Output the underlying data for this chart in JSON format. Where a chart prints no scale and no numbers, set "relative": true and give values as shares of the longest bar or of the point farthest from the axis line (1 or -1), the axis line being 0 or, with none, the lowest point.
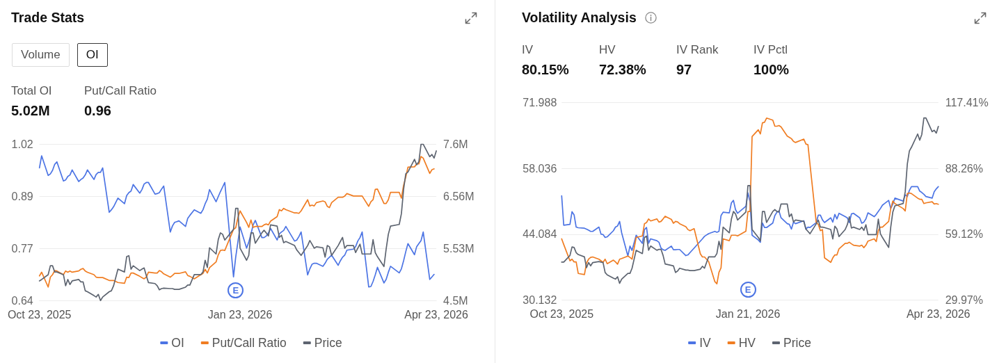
{
  "chart_data": [
    {
      "type": "other",
      "title": "Trade Stats",
      "categories": [
        "Volume",
        "OI"
      ],
      "annotations": [
        "Total OI",
        "5.02M",
        "Put/Call Ratio",
        "0.96"
      ]
    },
    {
      "type": "line",
      "x": [
        "2025-10-23",
        "2025-10-24",
        "2025-10-27",
        "2025-10-28",
        "2025-10-29",
        "2025-10-30",
        "2025-10-31",
        "2025-11-03",
        "2025-11-04",
        "2025-11-05",
        "2025-11-06",
        "2025-11-07",
        "2025-11-10",
        "2025-11-11",
        "2025-11-12",
        "2025-11-13",
        "2025-11-14",
        "2025-11-17",
        "2025-11-18",
        "2025-11-19",
        "2025-11-20",
        "2025-11-21",
        "2025-11-24",
        "2025-11-25",
        "2025-11-26",
        "2025-11-28",
        "2025-12-01",
        "2025-12-02",
        "2025-12-03",
        "2025-12-04",
        "2025-12-05",
        "2025-12-08",
        "2025-12-09",
        "2025-12-10",
        "2025-12-11",
        "2025-12-12",
        "2025-12-15",
        "2025-12-16",
        "2025-12-17",
        "2025-12-18",
        "2025-12-19",
        "2025-12-22",
        "2025-12-23",
        "2025-12-24",
        "2025-12-26",
        "2025-12-29",
        "2025-12-30",
        "2025-12-31",
        "2026-01-02",
        "2026-01-05",
        "2026-01-06",
        "2026-01-07",
        "2026-01-08",
        "2026-01-09",
        "2026-01-12",
        "2026-01-13",
        "2026-01-14",
        "2026-01-15",
        "2026-01-16",
        "2026-01-20",
        "2026-01-21",
        "2026-01-22",
        "2026-01-23",
        "2026-01-26",
        "2026-01-27",
        "2026-01-28",
        "2026-01-29",
        "2026-01-30",
        "2026-02-02",
        "2026-02-03",
        "2026-02-04",
        "2026-02-05",
        "2026-02-06",
        "2026-02-09",
        "2026-02-10",
        "2026-02-11",
        "2026-02-12",
        "2026-02-13",
        "2026-02-17",
        "2026-02-18",
        "2026-02-19",
        "2026-02-20",
        "2026-02-23",
        "2026-02-24",
        "2026-02-25",
        "2026-02-26",
        "2026-02-27",
        "2026-03-02",
        "2026-03-03",
        "2026-03-04",
        "2026-03-05",
        "2026-03-06",
        "2026-03-09",
        "2026-03-10",
        "2026-03-11",
        "2026-03-12",
        "2026-03-13",
        "2026-03-16",
        "2026-03-17",
        "2026-03-18",
        "2026-03-19",
        "2026-03-20",
        "2026-03-23",
        "2026-03-24",
        "2026-03-25",
        "2026-03-26",
        "2026-03-27",
        "2026-03-30",
        "2026-03-31",
        "2026-04-01",
        "2026-04-02",
        "2026-04-06",
        "2026-04-07",
        "2026-04-08",
        "2026-04-09",
        "2026-04-10",
        "2026-04-13",
        "2026-04-14",
        "2026-04-15",
        "2026-04-16",
        "2026-04-17",
        "2026-04-20",
        "2026-04-21",
        "2026-04-22"
      ],
      "xlim": [
        "2025-10-23",
        "2026-04-23"
      ],
      "xticks": [
        {
          "value": "2025-10-23",
          "label": "Oct 23, 2025"
        },
        {
          "value": "2026-01-23",
          "label": "Jan 23, 2026"
        },
        {
          "value": "2026-04-23",
          "label": "Apr 23, 2026"
        }
      ],
      "ylim": [
        0.64,
        1.02
      ],
      "yticks": [
        0.64,
        {
          "value": 0.7667,
          "label": "0.77"
        },
        {
          "value": 0.8933,
          "label": "0.89"
        },
        1.02
      ],
      "y2lim": [
        4.5,
        7.6
      ],
      "y2ticks": [
        {
          "value": 4.5,
          "label": "4.5M"
        },
        {
          "value": 5.53,
          "label": "5.53M"
        },
        {
          "value": 6.56,
          "label": "6.56M"
        },
        {
          "value": 7.6,
          "label": "7.6M"
        }
      ],
      "grid": "y",
      "legend": "bottom",
      "annotations": [
        {
          "text": "E",
          "x": "2026-01-21"
        }
      ],
      "series": [
        {
          "name": "OI",
          "color": "#4c74e4",
          "axis": "y2",
          "values": [
            7.13,
            7.37,
            6.98,
            7.01,
            7.08,
            7.2,
            7.25,
            6.87,
            6.89,
            6.96,
            6.99,
            7.09,
            6.86,
            6.9,
            6.93,
            6.99,
            7.09,
            6.9,
            7.0,
            7.04,
            7.04,
            7.13,
            6.25,
            6.3,
            6.36,
            6.53,
            6.42,
            6.58,
            6.64,
            6.67,
            6.8,
            6.63,
            6.7,
            6.81,
            6.84,
            6.84,
            6.61,
            6.62,
            6.64,
            6.71,
            6.77,
            5.86,
            5.98,
            6.05,
            6.08,
            5.97,
            6.13,
            6.19,
            6.3,
            6.23,
            6.3,
            6.42,
            6.51,
            6.7,
            6.46,
            6.56,
            6.66,
            6.75,
            6.84,
            4.97,
            5.36,
            5.66,
            5.96,
            5.54,
            5.66,
            5.82,
            6.0,
            6.09,
            5.75,
            5.75,
            5.78,
            5.84,
            5.93,
            5.7,
            5.82,
            5.86,
            5.89,
            5.97,
            5.68,
            5.7,
            5.77,
            5.86,
            5.01,
            5.13,
            5.22,
            5.24,
            5.24,
            5.18,
            5.24,
            5.32,
            5.36,
            5.4,
            5.2,
            5.29,
            5.36,
            5.4,
            5.5,
            5.52,
            5.57,
            5.68,
            5.75,
            5.86,
            4.77,
            4.78,
            4.88,
            5.01,
            5.16,
            4.85,
            4.92,
            5.06,
            5.18,
            5.05,
            5.13,
            5.29,
            5.47,
            5.63,
            5.41,
            5.57,
            5.63,
            5.69,
            5.86,
            4.92,
            4.97,
            5.02
          ]
        },
        {
          "name": "Put/Call Ratio",
          "color": "#f07d22",
          "values": [
            0.7,
            0.709,
            0.673,
            0.697,
            0.703,
            0.713,
            0.712,
            0.703,
            0.712,
            0.709,
            0.712,
            0.709,
            0.712,
            0.716,
            0.718,
            0.712,
            0.709,
            0.703,
            0.697,
            0.696,
            0.696,
            0.696,
            0.689,
            0.689,
            0.689,
            0.684,
            0.682,
            0.697,
            0.696,
            0.707,
            0.707,
            0.699,
            0.696,
            0.693,
            0.697,
            0.709,
            0.707,
            0.707,
            0.713,
            0.71,
            0.705,
            0.697,
            0.701,
            0.706,
            0.706,
            0.71,
            0.701,
            0.699,
            0.693,
            0.703,
            0.706,
            0.716,
            0.707,
            0.72,
            0.734,
            0.751,
            0.762,
            0.763,
            0.762,
            0.813,
            0.817,
            0.841,
            0.858,
            0.83,
            0.818,
            0.836,
            0.818,
            0.82,
            0.82,
            0.824,
            0.826,
            0.824,
            0.833,
            0.844,
            0.861,
            0.858,
            0.864,
            0.861,
            0.853,
            0.853,
            0.852,
            0.858,
            0.885,
            0.87,
            0.872,
            0.87,
            0.878,
            0.882,
            0.88,
            0.869,
            0.866,
            0.878,
            0.891,
            0.891,
            0.891,
            0.894,
            0.9,
            0.894,
            0.894,
            0.894,
            0.894,
            0.894,
            0.869,
            0.88,
            0.885,
            0.91,
            0.911,
            0.876,
            0.876,
            0.885,
            0.903,
            0.903,
            0.889,
            0.92,
            0.94,
            0.964,
            0.965,
            0.972,
            0.972,
            0.99,
            0.986,
            0.949,
            0.958,
            0.96
          ]
        }
      ]
    },
    {
      "type": "line",
      "relative": true,
      "tick_labels": false,
      "x": [
        "2025-10-23",
        "2025-10-24",
        "2025-10-27",
        "2025-10-28",
        "2025-10-29",
        "2025-10-30",
        "2025-10-31",
        "2025-11-03",
        "2025-11-04",
        "2025-11-05",
        "2025-11-06",
        "2025-11-07",
        "2025-11-10",
        "2025-11-11",
        "2025-11-12",
        "2025-11-13",
        "2025-11-14",
        "2025-11-17",
        "2025-11-18",
        "2025-11-19",
        "2025-11-20",
        "2025-11-21",
        "2025-11-24",
        "2025-11-25",
        "2025-11-26",
        "2025-11-28",
        "2025-12-01",
        "2025-12-02",
        "2025-12-03",
        "2025-12-04",
        "2025-12-05",
        "2025-12-08",
        "2025-12-09",
        "2025-12-10",
        "2025-12-11",
        "2025-12-12",
        "2025-12-15",
        "2025-12-16",
        "2025-12-17",
        "2025-12-18",
        "2025-12-19",
        "2025-12-22",
        "2025-12-23",
        "2025-12-24",
        "2025-12-26",
        "2025-12-29",
        "2025-12-30",
        "2025-12-31",
        "2026-01-02",
        "2026-01-05",
        "2026-01-06",
        "2026-01-07",
        "2026-01-08",
        "2026-01-09",
        "2026-01-12",
        "2026-01-13",
        "2026-01-14",
        "2026-01-15",
        "2026-01-16",
        "2026-01-20",
        "2026-01-21",
        "2026-01-22",
        "2026-01-23",
        "2026-01-26",
        "2026-01-27",
        "2026-01-28",
        "2026-01-29",
        "2026-01-30",
        "2026-02-02",
        "2026-02-03",
        "2026-02-04",
        "2026-02-05",
        "2026-02-06",
        "2026-02-09",
        "2026-02-10",
        "2026-02-11",
        "2026-02-12",
        "2026-02-13",
        "2026-02-17",
        "2026-02-18",
        "2026-02-19",
        "2026-02-20",
        "2026-02-23",
        "2026-02-24",
        "2026-02-25",
        "2026-02-26",
        "2026-02-27",
        "2026-03-02",
        "2026-03-03",
        "2026-03-04",
        "2026-03-05",
        "2026-03-06",
        "2026-03-09",
        "2026-03-10",
        "2026-03-11",
        "2026-03-12",
        "2026-03-13",
        "2026-03-16",
        "2026-03-17",
        "2026-03-18",
        "2026-03-19",
        "2026-03-20",
        "2026-03-23",
        "2026-03-24",
        "2026-03-25",
        "2026-03-26",
        "2026-03-27",
        "2026-03-30",
        "2026-03-31",
        "2026-04-01",
        "2026-04-02",
        "2026-04-06",
        "2026-04-07",
        "2026-04-08",
        "2026-04-09",
        "2026-04-10",
        "2026-04-13",
        "2026-04-14",
        "2026-04-15",
        "2026-04-16",
        "2026-04-17",
        "2026-04-20",
        "2026-04-21",
        "2026-04-22",
        "2026-04-23"
      ],
      "xlim": [
        "2025-10-23",
        "2026-04-23"
      ],
      "legend": "bottom",
      "series": [
        {
          "name": "Price",
          "color": "#5d6470",
          "values": [
            0.126,
            0.135,
            0.166,
            0.223,
            0.223,
            0.183,
            0.183,
            0.166,
            0.095,
            0.135,
            0.103,
            0.126,
            0.135,
            0.12,
            0.12,
            0.063,
            0.057,
            0.032,
            0.023,
            0.04,
            0,
            0.023,
            0.057,
            0.063,
            0.095,
            0.201,
            0.183,
            0.281,
            0.287,
            0.201,
            0.223,
            0.192,
            0.201,
            0.209,
            0.16,
            0.115,
            0.109,
            0.095,
            0.069,
            0.077,
            0.08,
            0.077,
            0.077,
            0.072,
            0.072,
            0.086,
            0.1,
            0.1,
            0.166,
            0.166,
            0.183,
            0.258,
            0.212,
            0.338,
            0.298,
            0.39,
            0.433,
            0.424,
            0.387,
            0.456,
            0.59,
            0.59,
            0.335,
            0.258,
            0.289,
            0.433,
            0.433,
            0.367,
            0.433,
            0.45,
            0.433,
            0.413,
            0.484,
            0.476,
            0.404,
            0.418,
            0.37,
            0.378,
            0.352,
            0.324,
            0.307,
            0.289,
            0.352,
            0.384,
            0.361,
            0.335,
            0.344,
            0.338,
            0.278,
            0.352,
            0.344,
            0.289,
            0.352,
            0.378,
            0.404,
            0.335,
            0.352,
            0.352,
            0.307,
            0.335,
            0.361,
            0.298,
            0.298,
            0.298,
            0.39,
            0.307,
            0.281,
            0.218,
            0.33,
            0.424,
            0.476,
            0.487,
            0.556,
            0.711,
            0.811,
            0.822,
            0.903,
            0.868,
            0.888,
            1,
            1,
            0.92,
            0.934,
            0.911,
            0.957
          ]
        }
      ]
    },
    {
      "type": "other",
      "title": "Volatility Analysis",
      "annotations": [
        "IV",
        "80.15%",
        "HV",
        "72.38%",
        "IV Rank",
        "97",
        "IV Pctl",
        "100%"
      ]
    },
    {
      "type": "line",
      "x": [
        "2025-10-23",
        "2025-10-24",
        "2025-10-27",
        "2025-10-28",
        "2025-10-29",
        "2025-10-30",
        "2025-10-31",
        "2025-11-03",
        "2025-11-04",
        "2025-11-05",
        "2025-11-06",
        "2025-11-07",
        "2025-11-10",
        "2025-11-11",
        "2025-11-12",
        "2025-11-13",
        "2025-11-14",
        "2025-11-17",
        "2025-11-18",
        "2025-11-19",
        "2025-11-20",
        "2025-11-21",
        "2025-11-24",
        "2025-11-25",
        "2025-11-26",
        "2025-11-28",
        "2025-12-01",
        "2025-12-02",
        "2025-12-03",
        "2025-12-04",
        "2025-12-05",
        "2025-12-08",
        "2025-12-09",
        "2025-12-10",
        "2025-12-11",
        "2025-12-12",
        "2025-12-15",
        "2025-12-16",
        "2025-12-17",
        "2025-12-18",
        "2025-12-19",
        "2025-12-22",
        "2025-12-23",
        "2025-12-24",
        "2025-12-26",
        "2025-12-29",
        "2025-12-30",
        "2025-12-31",
        "2026-01-02",
        "2026-01-05",
        "2026-01-06",
        "2026-01-07",
        "2026-01-08",
        "2026-01-09",
        "2026-01-12",
        "2026-01-13",
        "2026-01-14",
        "2026-01-15",
        "2026-01-16",
        "2026-01-20",
        "2026-01-21",
        "2026-01-22",
        "2026-01-23",
        "2026-01-26",
        "2026-01-27",
        "2026-01-28",
        "2026-01-29",
        "2026-01-30",
        "2026-02-02",
        "2026-02-03",
        "2026-02-04",
        "2026-02-05",
        "2026-02-06",
        "2026-02-09",
        "2026-02-10",
        "2026-02-11",
        "2026-02-12",
        "2026-02-13",
        "2026-02-17",
        "2026-02-18",
        "2026-02-19",
        "2026-02-20",
        "2026-02-23",
        "2026-02-24",
        "2026-02-25",
        "2026-02-26",
        "2026-02-27",
        "2026-03-02",
        "2026-03-03",
        "2026-03-04",
        "2026-03-05",
        "2026-03-06",
        "2026-03-09",
        "2026-03-10",
        "2026-03-11",
        "2026-03-12",
        "2026-03-13",
        "2026-03-16",
        "2026-03-17",
        "2026-03-18",
        "2026-03-19",
        "2026-03-20",
        "2026-03-23",
        "2026-03-24",
        "2026-03-25",
        "2026-03-26",
        "2026-03-27",
        "2026-03-30",
        "2026-03-31",
        "2026-04-01",
        "2026-04-02",
        "2026-04-06",
        "2026-04-07",
        "2026-04-08",
        "2026-04-09",
        "2026-04-10",
        "2026-04-13",
        "2026-04-14",
        "2026-04-15",
        "2026-04-16",
        "2026-04-17",
        "2026-04-20",
        "2026-04-21",
        "2026-04-22",
        "2026-04-23"
      ],
      "xlim": [
        "2025-10-23",
        "2026-04-23"
      ],
      "xticks": [
        {
          "value": "2025-10-23",
          "label": "Oct 23, 2025"
        },
        {
          "value": "2026-01-21",
          "label": "Jan 21, 2026"
        },
        {
          "value": "2026-04-23",
          "label": "Apr 23, 2026"
        }
      ],
      "ylim": [
        30.132,
        71.988
      ],
      "yticks": [
        30.132,
        44.084,
        58.036,
        71.988
      ],
      "y2lim": [
        29.97,
        117.41
      ],
      "y2ticks": [
        {
          "value": 29.97,
          "label": "29.97%"
        },
        {
          "value": 59.1167,
          "label": "59.12%"
        },
        {
          "value": 88.2633,
          "label": "88.26%"
        },
        {
          "value": 117.41,
          "label": "117.41%"
        }
      ],
      "grid": "y",
      "legend": "bottom",
      "annotations": [
        {
          "text": "E",
          "x": "2026-01-21"
        }
      ],
      "series": [
        {
          "name": "IV",
          "color": "#4c74e4",
          "axis": "y2",
          "values": [
            76.1,
            63.1,
            63.5,
            69.1,
            67.7,
            62.3,
            62.0,
            61.8,
            61.4,
            60.9,
            60.4,
            60.4,
            62.3,
            59.2,
            59.0,
            57.7,
            58.0,
            60.7,
            62.3,
            62.8,
            64.8,
            59.7,
            49.5,
            53.9,
            52.0,
            58.7,
            55.1,
            61.2,
            62.1,
            55.1,
            57.1,
            56.3,
            55.6,
            53.0,
            52.3,
            52.0,
            53.9,
            52.3,
            52.3,
            52.4,
            52.4,
            49.7,
            50.0,
            51.0,
            53.0,
            56.1,
            57.1,
            58.2,
            59.4,
            60.4,
            60.0,
            60.4,
            67.4,
            68.9,
            68.6,
            73.0,
            74.1,
            70.0,
            68.4,
            71.5,
            77.4,
            73.5,
            58.7,
            56.6,
            55.6,
            64.1,
            62.1,
            62.1,
            64.1,
            67.4,
            68.9,
            69.4,
            66.4,
            63.8,
            63.5,
            61.4,
            64.5,
            63.8,
            65.1,
            61.4,
            62.3,
            62.1,
            64.3,
            67.6,
            67.6,
            65.5,
            64.3,
            66.4,
            64.5,
            67.9,
            65.9,
            68.4,
            66.9,
            66.4,
            64.3,
            68.1,
            68.4,
            66.4,
            64.0,
            64.5,
            65.9,
            68.6,
            66.9,
            67.9,
            69.2,
            70.5,
            72.0,
            74.1,
            70.5,
            72.5,
            75.1,
            73.8,
            76.6,
            75.8,
            78.5,
            80.2,
            80.2,
            78.2,
            77.6,
            76.8,
            75.8,
            75.1,
            77.9,
            79.2,
            80.2
          ]
        },
        {
          "name": "HV",
          "color": "#f07d22",
          "axis": "y2",
          "values": [
            57.1,
            54.6,
            47.4,
            48.1,
            46.9,
            46.9,
            41.8,
            41.3,
            46.4,
            48.1,
            48.9,
            49.1,
            48.1,
            47.4,
            46.7,
            48.1,
            46.1,
            47.7,
            46.9,
            45.9,
            48.1,
            48.4,
            49.5,
            48.9,
            48.1,
            57.7,
            58.4,
            63.8,
            64.3,
            65.9,
            65.0,
            65.9,
            64.5,
            64.8,
            65.9,
            67.1,
            65.7,
            64.0,
            64.8,
            64.6,
            63.8,
            62.5,
            61.2,
            60.7,
            61.6,
            50.5,
            49.1,
            49.1,
            47.1,
            38.2,
            37.2,
            42.3,
            44.3,
            57.1,
            56.3,
            58.7,
            58.7,
            58.7,
            58.4,
            60.5,
            69.2,
            69.2,
            102.3,
            105.3,
            103.5,
            108.4,
            108.6,
            110.5,
            109.6,
            106.9,
            106.9,
            107.2,
            106.6,
            102.5,
            102.0,
            101.4,
            100.2,
            99.7,
            101.2,
            99.0,
            98.7,
            89.9,
            64.3,
            63.5,
            60.7,
            61.2,
            48.7,
            46.7,
            48.7,
            50.0,
            50.0,
            52.7,
            55.1,
            55.1,
            55.6,
            54.9,
            54.3,
            53.9,
            54.3,
            53.2,
            54.3,
            56.1,
            57.1,
            55.9,
            60.7,
            62.3,
            62.3,
            64.8,
            70.5,
            73.8,
            72.7,
            70.5,
            69.4,
            77.1,
            77.4,
            77.1,
            75.1,
            74.6,
            74.6,
            72.7,
            73.0,
            73.5,
            72.5,
            72.7,
            72.4
          ]
        },
        {
          "name": "Price",
          "color": "#5d6470",
          "values": [
            38.2,
            38.2,
            39.6,
            41.4,
            41.3,
            40.2,
            39.8,
            39.3,
            37.0,
            38.1,
            37.4,
            38.1,
            38.3,
            38.2,
            38.1,
            36.0,
            35.5,
            34.8,
            34.6,
            35.1,
            33.7,
            34.6,
            35.8,
            35.8,
            36.9,
            40.7,
            40.0,
            43.4,
            43.7,
            40.7,
            41.6,
            40.7,
            40.9,
            40.9,
            39.6,
            37.8,
            37.5,
            37.4,
            36.0,
            36.3,
            36.9,
            36.5,
            36.5,
            36.4,
            36.4,
            36.7,
            37.3,
            36.9,
            39.3,
            39.3,
            40.0,
            42.6,
            40.9,
            45.6,
            44.4,
            47.3,
            48.9,
            48.4,
            47.1,
            48.8,
            54.4,
            54.4,
            45.1,
            43.4,
            42.7,
            48.9,
            48.9,
            46.6,
            48.9,
            49.3,
            48.9,
            48.8,
            50.5,
            50.5,
            47.8,
            48.4,
            46.7,
            47.1,
            46.8,
            45.2,
            44.7,
            44.2,
            46.3,
            47.1,
            45.6,
            45.6,
            45.5,
            45.1,
            43.1,
            45.8,
            45.2,
            43.6,
            45.1,
            46.1,
            47.8,
            45.4,
            45.6,
            45.1,
            45.6,
            44.9,
            46.1,
            44.0,
            44.0,
            44.0,
            47.3,
            44.2,
            43.4,
            41.3,
            45.6,
            48.8,
            50.1,
            50.6,
            53.1,
            58.9,
            61.7,
            62.5,
            65.3,
            64.0,
            65.2,
            68.7,
            68.7,
            65.8,
            66.1,
            65.5,
            66.9
          ]
        }
      ]
    }
  ]
}
